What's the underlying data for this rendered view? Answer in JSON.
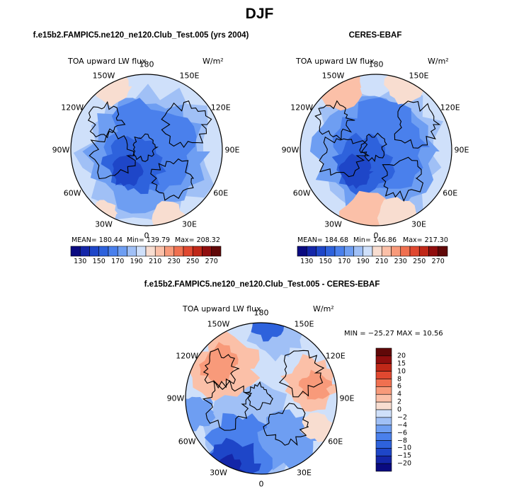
{
  "main_title": "DJF",
  "chart_data": [
    {
      "type": "polar_contour_map",
      "title": "f.e15b2.FAMPIC5.ne120_ne120.Club_Test.005 (yrs 2004)",
      "variable": "TOA upward LW flux",
      "units": "W/m²",
      "projection": "north polar stereographic",
      "longitude_labels": [
        "180",
        "150E",
        "120E",
        "90E",
        "60E",
        "30E",
        "0",
        "30W",
        "60W",
        "90W",
        "120W",
        "150W"
      ],
      "stats": {
        "mean": 180.44,
        "min": 139.79,
        "max": 208.32
      },
      "stats_text": {
        "mean": "MEAN= 180.44",
        "min": "Min= 139.79",
        "max": "Max= 208.32"
      },
      "colorbar": {
        "levels": [
          130,
          140,
          150,
          160,
          170,
          180,
          190,
          200,
          210,
          220,
          230,
          240,
          250,
          260,
          270
        ],
        "tick_labels": [
          "130",
          "150",
          "170",
          "190",
          "210",
          "230",
          "250",
          "270"
        ]
      }
    },
    {
      "type": "polar_contour_map",
      "title": "CERES-EBAF",
      "variable": "TOA upward LW flux",
      "units": "W/m²",
      "projection": "north polar stereographic",
      "longitude_labels": [
        "180",
        "150E",
        "120E",
        "90E",
        "60E",
        "30E",
        "0",
        "30W",
        "60W",
        "90W",
        "120W",
        "150W"
      ],
      "stats": {
        "mean": 184.68,
        "min": 146.86,
        "max": 217.3
      },
      "stats_text": {
        "mean": "MEAN= 184.68",
        "min": "Min= 146.86",
        "max": "Max= 217.30"
      },
      "colorbar": {
        "levels": [
          130,
          140,
          150,
          160,
          170,
          180,
          190,
          200,
          210,
          220,
          230,
          240,
          250,
          260,
          270
        ],
        "tick_labels": [
          "130",
          "150",
          "170",
          "190",
          "210",
          "230",
          "250",
          "270"
        ]
      }
    },
    {
      "type": "polar_contour_map",
      "title": "f.e15b2.FAMPIC5.ne120_ne120.Club_Test.005 - CERES-EBAF",
      "variable": "TOA upward LW flux",
      "units": "W/m²",
      "projection": "north polar stereographic",
      "longitude_labels": [
        "180",
        "150E",
        "120E",
        "90E",
        "60E",
        "30E",
        "0",
        "30W",
        "60W",
        "90W",
        "120W",
        "150W"
      ],
      "stats": {
        "min": -25.27,
        "max": 10.56
      },
      "stats_text": "MIN = −25.27  MAX =  10.56",
      "colorbar": {
        "levels": [
          -20,
          -15,
          -10,
          -8,
          -6,
          -4,
          -2,
          0,
          2,
          4,
          6,
          8,
          10,
          15,
          20
        ],
        "tick_labels": [
          "−20",
          "−15",
          "−10",
          "−8",
          "−6",
          "−4",
          "−2",
          "0",
          "2",
          "4",
          "6",
          "8",
          "10",
          "15",
          "20"
        ]
      }
    }
  ],
  "colors": {
    "abs_scale": [
      "#0a0a80",
      "#1426a8",
      "#1e46c8",
      "#2e62dc",
      "#4a80ec",
      "#6e9ef2",
      "#a0c0f6",
      "#cfe0fa",
      "#f8ddd0",
      "#fbc0a8",
      "#f89a7a",
      "#f07050",
      "#e04830",
      "#c02818",
      "#900e0e",
      "#600808"
    ],
    "diff_scale": [
      "#0a0a80",
      "#1426a8",
      "#1e46c8",
      "#2e62dc",
      "#4a80ec",
      "#6e9ef2",
      "#a0c0f6",
      "#cfe0fa",
      "#f8ddd0",
      "#fbc0a8",
      "#f89a7a",
      "#f07050",
      "#e04830",
      "#c02818",
      "#900e0e",
      "#600808"
    ]
  }
}
